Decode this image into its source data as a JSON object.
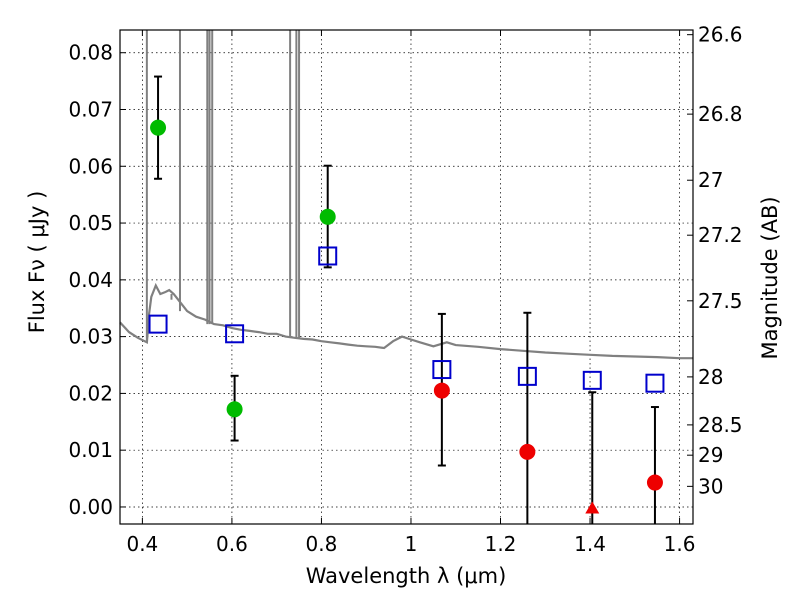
{
  "chart_data": {
    "type": "scatter",
    "title": "",
    "xlabel": "Wavelength  λ (μm)",
    "ylabel": "Flux  Fν  ( μJy )",
    "y2label": "Magnitude (AB)",
    "xlim": [
      0.35,
      1.63
    ],
    "ylim": [
      -0.003,
      0.084
    ],
    "grid": true,
    "x_ticks": [
      0.4,
      0.6,
      0.8,
      1.0,
      1.2,
      1.4,
      1.6
    ],
    "x_tick_labels": [
      "0.4",
      "0.6",
      "0.8",
      "1",
      "1.2",
      "1.4",
      "1.6"
    ],
    "y_ticks": [
      0.0,
      0.01,
      0.02,
      0.03,
      0.04,
      0.05,
      0.06,
      0.07,
      0.08
    ],
    "y_tick_labels": [
      "0.00",
      "0.01",
      "0.02",
      "0.03",
      "0.04",
      "0.05",
      "0.06",
      "0.07",
      "0.08"
    ],
    "y2_tick_labels": [
      "26.6",
      "26.8",
      "27",
      "27.2",
      "27.5",
      "28",
      "28.5",
      "29",
      "30"
    ],
    "series": [
      {
        "marker": "circle",
        "color": "#00bb00",
        "points": [
          {
            "x": 0.435,
            "y": 0.0668,
            "lo": 0.0578,
            "hi": 0.0758
          },
          {
            "x": 0.606,
            "y": 0.0172,
            "lo": 0.0117,
            "hi": 0.0231
          },
          {
            "x": 0.814,
            "y": 0.0511,
            "lo": 0.0422,
            "hi": 0.0601
          }
        ]
      },
      {
        "marker": "circle",
        "color": "#ee0000",
        "points": [
          {
            "x": 1.069,
            "y": 0.0205,
            "lo": 0.0073,
            "hi": 0.034
          },
          {
            "x": 1.26,
            "y": 0.0097,
            "lo": -0.003,
            "hi": 0.0342
          },
          {
            "x": 1.545,
            "y": 0.0043,
            "lo": -0.003,
            "hi": 0.0176
          }
        ]
      },
      {
        "marker": "triangle",
        "color": "#ee0000",
        "points": [
          {
            "x": 1.405,
            "y": -0.0003,
            "lo": -0.003,
            "hi": 0.0202
          }
        ]
      },
      {
        "marker": "open-square",
        "color": "#0000cc",
        "points": [
          {
            "x": 0.435,
            "y": 0.0322
          },
          {
            "x": 0.606,
            "y": 0.0305
          },
          {
            "x": 0.814,
            "y": 0.0442
          },
          {
            "x": 1.069,
            "y": 0.0242
          },
          {
            "x": 1.26,
            "y": 0.023
          },
          {
            "x": 1.405,
            "y": 0.0223
          },
          {
            "x": 1.545,
            "y": 0.0218
          }
        ]
      }
    ],
    "model_spectrum": {
      "color": "#808080",
      "x": [
        0.35,
        0.37,
        0.39,
        0.41,
        0.415,
        0.42,
        0.43,
        0.44,
        0.45,
        0.46,
        0.47,
        0.48,
        0.5,
        0.52,
        0.54,
        0.56,
        0.58,
        0.6,
        0.62,
        0.64,
        0.66,
        0.68,
        0.7,
        0.72,
        0.74,
        0.76,
        0.78,
        0.8,
        0.82,
        0.84,
        0.86,
        0.88,
        0.9,
        0.92,
        0.94,
        0.96,
        0.98,
        1.0,
        1.02,
        1.05,
        1.08,
        1.1,
        1.15,
        1.2,
        1.25,
        1.3,
        1.35,
        1.4,
        1.45,
        1.5,
        1.55,
        1.6,
        1.63
      ],
      "y": [
        0.0325,
        0.0308,
        0.0298,
        0.029,
        0.034,
        0.037,
        0.039,
        0.0375,
        0.0378,
        0.0382,
        0.0375,
        0.0365,
        0.0345,
        0.0335,
        0.033,
        0.0322,
        0.032,
        0.0315,
        0.0312,
        0.031,
        0.0308,
        0.0305,
        0.0305,
        0.03,
        0.0298,
        0.0296,
        0.0295,
        0.0292,
        0.029,
        0.0288,
        0.0286,
        0.0284,
        0.0283,
        0.0282,
        0.028,
        0.0292,
        0.03,
        0.0295,
        0.029,
        0.0283,
        0.029,
        0.0285,
        0.0282,
        0.0278,
        0.0275,
        0.0272,
        0.027,
        0.0268,
        0.0266,
        0.0265,
        0.0264,
        0.0262,
        0.0262
      ]
    },
    "emission_lines": [
      {
        "x": 0.41,
        "peak": 0.084
      },
      {
        "x": 0.465,
        "peak": 0.0365
      },
      {
        "x": 0.484,
        "peak": 0.084
      },
      {
        "x": 0.545,
        "peak": 0.084
      },
      {
        "x": 0.55,
        "peak": 0.084
      },
      {
        "x": 0.556,
        "peak": 0.084
      },
      {
        "x": 0.73,
        "peak": 0.084
      },
      {
        "x": 0.744,
        "peak": 0.084
      },
      {
        "x": 0.75,
        "peak": 0.084
      }
    ]
  }
}
